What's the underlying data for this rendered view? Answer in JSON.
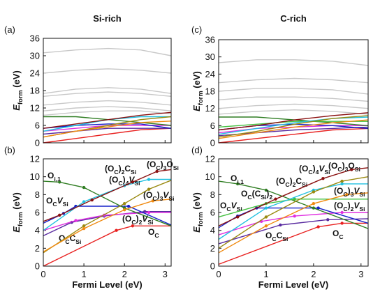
{
  "chart_data": [
    {
      "type": "line",
      "title": "Si-rich",
      "panel_label": "(a)",
      "y_label": [
        {
          "it": "E"
        },
        {
          "sub": "form"
        },
        {
          "text": " (eV)"
        }
      ],
      "xlim": [
        0,
        3.15
      ],
      "xticks": [
        0,
        1,
        2,
        3
      ],
      "xtick_labels": false,
      "ylim": [
        0,
        36
      ],
      "yticks": [
        0,
        6,
        12,
        18,
        24,
        30,
        36
      ],
      "x": [
        0,
        0.8,
        1.6,
        2.4,
        3.15
      ],
      "series": [
        {
          "color": "#c8c8c8",
          "values": [
            31,
            32,
            32.5,
            32,
            30
          ]
        },
        {
          "color": "#c8c8c8",
          "values": [
            24,
            25,
            25.5,
            25,
            24
          ]
        },
        {
          "color": "#c8c8c8",
          "values": [
            17,
            18.5,
            19,
            18.5,
            17
          ]
        },
        {
          "color": "#c8c8c8",
          "values": [
            16,
            17,
            17.5,
            17,
            16
          ]
        },
        {
          "color": "#c8c8c8",
          "values": [
            13,
            14,
            14.5,
            14,
            13
          ]
        },
        {
          "color": "#c8c8c8",
          "values": [
            11,
            12,
            12.5,
            12,
            11
          ]
        },
        {
          "color": "#c8c8c8",
          "values": [
            9.5,
            10.5,
            11,
            11,
            10
          ]
        },
        {
          "color": "#e8201f",
          "values": [
            0,
            1.5,
            3,
            4.5,
            5
          ]
        },
        {
          "color": "#5a2ca0",
          "values": [
            3,
            4,
            5,
            5,
            5
          ]
        },
        {
          "color": "#e030e0",
          "values": [
            4,
            5,
            6,
            6,
            6
          ]
        },
        {
          "color": "#1520c8",
          "values": [
            5,
            6,
            6.5,
            6.5,
            5
          ]
        },
        {
          "color": "#2f7d22",
          "values": [
            9,
            9,
            8,
            7,
            6
          ]
        },
        {
          "color": "#20c0e0",
          "values": [
            4,
            6,
            8,
            9,
            9
          ]
        },
        {
          "color": "#9a8a10",
          "values": [
            2,
            4,
            6,
            8,
            9
          ]
        },
        {
          "color": "#f08a10",
          "values": [
            2,
            4,
            5.5,
            7,
            7.5
          ]
        },
        {
          "color": "#8a1010",
          "values": [
            5,
            6.5,
            8,
            9.5,
            10.5
          ]
        }
      ]
    },
    {
      "type": "line",
      "panel_label": "(b)",
      "y_label": [
        {
          "it": "E"
        },
        {
          "sub": "form"
        },
        {
          "text": " (eV)"
        }
      ],
      "x_label": "Fermi Level (eV)",
      "xlim": [
        0,
        3.15
      ],
      "xticks": [
        0,
        1,
        2,
        3
      ],
      "xtick_labels": true,
      "ylim": [
        0,
        12
      ],
      "yticks": [
        0,
        2,
        4,
        6,
        8,
        10,
        12
      ],
      "series": [
        {
          "name": [
            {
              "text": "O"
            },
            {
              "sub": "C"
            }
          ],
          "color": "#e8201f",
          "x": [
            0,
            1.8,
            2.2,
            3.15
          ],
          "values": [
            0,
            4.0,
            4.5,
            4.5
          ]
        },
        {
          "name": [
            {
              "text": "O"
            },
            {
              "sub": "C"
            },
            {
              "text": "C"
            },
            {
              "sub": "Si"
            }
          ],
          "color": "#5a2ca0",
          "x": [
            0,
            0.7,
            1.5,
            2.5,
            3.15
          ],
          "values": [
            3.4,
            4.9,
            5.6,
            6.1,
            6.1
          ]
        },
        {
          "name": [
            {
              "text": "(O"
            },
            {
              "sub": "C"
            },
            {
              "text": ")"
            },
            {
              "sub": "2"
            },
            {
              "it": "V"
            },
            {
              "sub": "Si"
            }
          ],
          "color": "#e030e0",
          "x": [
            0,
            0.8,
            1.5,
            2.6,
            3.15
          ],
          "values": [
            4.0,
            5.1,
            5.7,
            6.0,
            6.0
          ]
        },
        {
          "name": [
            {
              "text": "O"
            },
            {
              "sub": "C"
            },
            {
              "it": "V"
            },
            {
              "sub": "Si"
            }
          ],
          "color": "#1520c8",
          "x": [
            0,
            0.5,
            0.8,
            2.1,
            3.15
          ],
          "values": [
            4.8,
            5.9,
            6.7,
            6.7,
            4.6
          ]
        },
        {
          "name": [
            {
              "text": "O"
            },
            {
              "sub": "i,1"
            }
          ],
          "color": "#2f7d22",
          "x": [
            0,
            0.4,
            1.0,
            2.0,
            3.15
          ],
          "values": [
            9.5,
            9.4,
            8.8,
            6.5,
            4.5
          ]
        },
        {
          "name": [
            {
              "text": "(O"
            },
            {
              "sub": "C"
            },
            {
              "text": ")"
            },
            {
              "sub": "2"
            },
            {
              "text": "C"
            },
            {
              "sub": "Si"
            }
          ],
          "color": "#20c0e0",
          "x": [
            0,
            1.0,
            2.0,
            2.6,
            3.15
          ],
          "values": [
            4.0,
            7.2,
            9.0,
            9.7,
            9.7
          ]
        },
        {
          "name": [
            {
              "text": "(O"
            },
            {
              "sub": "C"
            },
            {
              "text": ")"
            },
            {
              "sub": "4"
            },
            {
              "it": "V"
            },
            {
              "sub": "Si"
            }
          ],
          "color": "#9a8a10",
          "x": [
            0,
            1.0,
            2.0,
            2.6,
            3.15
          ],
          "values": [
            1.5,
            4.5,
            7.0,
            8.6,
            9.6
          ]
        },
        {
          "name": [
            {
              "text": "(O"
            },
            {
              "sub": "C"
            },
            {
              "text": ")"
            },
            {
              "sub": "3"
            },
            {
              "it": "V"
            },
            {
              "sub": "Si"
            }
          ],
          "color": "#f08a10",
          "x": [
            0,
            1.0,
            2.0,
            2.7,
            3.15
          ],
          "values": [
            1.6,
            4.2,
            6.3,
            7.3,
            7.5
          ]
        },
        {
          "name": [
            {
              "text": "(O"
            },
            {
              "sub": "C"
            },
            {
              "text": ")"
            },
            {
              "sub": "3"
            },
            {
              "text": "O"
            },
            {
              "sub": "Si"
            }
          ],
          "color": "#8a1010",
          "x": [
            0,
            0.4,
            1.2,
            2.2,
            2.8,
            3.15
          ],
          "values": [
            5.0,
            5.7,
            7.4,
            9.4,
            10.6,
            10.8
          ]
        }
      ]
    },
    {
      "type": "line",
      "title": "C-rich",
      "panel_label": "(c)",
      "y_label": [
        {
          "it": "E"
        },
        {
          "sub": "form"
        },
        {
          "text": " (eV)"
        }
      ],
      "xlim": [
        0,
        3.15
      ],
      "xticks": [
        0,
        1,
        2,
        3
      ],
      "xtick_labels": false,
      "ylim": [
        0,
        36
      ],
      "yticks": [
        0,
        6,
        12,
        18,
        24,
        30,
        36
      ],
      "x": [
        0,
        0.8,
        1.6,
        2.4,
        3.15
      ],
      "series": [
        {
          "color": "#c8c8c8",
          "values": [
            28,
            29,
            29,
            28.5,
            27
          ]
        },
        {
          "color": "#c8c8c8",
          "values": [
            21,
            22,
            22.5,
            22,
            21
          ]
        },
        {
          "color": "#c8c8c8",
          "values": [
            18,
            19,
            19,
            18.5,
            17
          ]
        },
        {
          "color": "#c8c8c8",
          "values": [
            15,
            16,
            16,
            15.5,
            14.5
          ]
        },
        {
          "color": "#c8c8c8",
          "values": [
            12,
            13,
            13.5,
            13,
            12
          ]
        },
        {
          "color": "#c8c8c8",
          "values": [
            10,
            11,
            11.5,
            11,
            10
          ]
        },
        {
          "color": "#e8201f",
          "values": [
            0,
            1.5,
            3,
            4.5,
            5
          ]
        },
        {
          "color": "#5a2ca0",
          "values": [
            2.5,
            3.5,
            4.5,
            5,
            5.5
          ]
        },
        {
          "color": "#e030e0",
          "values": [
            3.5,
            5,
            5.5,
            6,
            6
          ]
        },
        {
          "color": "#1520c8",
          "values": [
            4.5,
            6,
            6.5,
            6,
            5
          ]
        },
        {
          "color": "#2f7d22",
          "values": [
            9,
            9,
            8,
            7,
            6
          ]
        },
        {
          "color": "#44c040",
          "values": [
            5.5,
            6.5,
            7.5,
            7.5,
            7.5
          ]
        },
        {
          "color": "#20c0e0",
          "values": [
            3,
            5,
            7,
            8.5,
            9
          ]
        },
        {
          "color": "#9a8a10",
          "values": [
            2,
            4,
            6.5,
            8.5,
            9.5
          ]
        },
        {
          "color": "#f08a10",
          "values": [
            1.5,
            3.5,
            5.5,
            7,
            8
          ]
        },
        {
          "color": "#8a1010",
          "values": [
            4.5,
            6,
            8,
            9.5,
            10.5
          ]
        }
      ]
    },
    {
      "type": "line",
      "panel_label": "(d)",
      "y_label": [
        {
          "it": "E"
        },
        {
          "sub": "form"
        },
        {
          "text": " (eV)"
        }
      ],
      "x_label": "Fermi Level (eV)",
      "xlim": [
        0,
        3.15
      ],
      "xticks": [
        0,
        1,
        2,
        3
      ],
      "xtick_labels": true,
      "ylim": [
        0,
        12
      ],
      "yticks": [
        0,
        2,
        4,
        6,
        8,
        10,
        12
      ],
      "series": [
        {
          "name": [
            {
              "text": "O"
            },
            {
              "sub": "C"
            }
          ],
          "color": "#e8201f",
          "x": [
            0,
            2.1,
            2.6,
            3.15
          ],
          "values": [
            0.2,
            4.4,
            4.8,
            4.8
          ]
        },
        {
          "name": [
            {
              "text": "O"
            },
            {
              "sub": "C"
            },
            {
              "text": "C"
            },
            {
              "sub": "Si"
            }
          ],
          "color": "#5a2ca0",
          "x": [
            0,
            1.3,
            2.3,
            3.15
          ],
          "values": [
            2.5,
            4.6,
            5.2,
            5.3
          ]
        },
        {
          "name": [
            {
              "text": "(O"
            },
            {
              "sub": "C"
            },
            {
              "text": ")"
            },
            {
              "sub": "2"
            },
            {
              "it": "V"
            },
            {
              "sub": "Si"
            }
          ],
          "color": "#e030e0",
          "x": [
            0,
            0.9,
            1.6,
            2.6,
            3.15
          ],
          "values": [
            3.5,
            5.0,
            5.6,
            6.0,
            6.0
          ]
        },
        {
          "name": [
            {
              "text": "O"
            },
            {
              "sub": "C"
            },
            {
              "it": "V"
            },
            {
              "sub": "Si"
            }
          ],
          "color": "#1520c8",
          "x": [
            0,
            0.4,
            0.8,
            2.1,
            3.15
          ],
          "values": [
            4.3,
            5.6,
            6.5,
            6.5,
            4.8
          ]
        },
        {
          "name": [
            {
              "text": "O"
            },
            {
              "sub": "i,1"
            }
          ],
          "color": "#2f7d22",
          "x": [
            0,
            0.4,
            1.0,
            2.0,
            3.15
          ],
          "values": [
            9.5,
            9.2,
            8.5,
            6.5,
            4.2
          ]
        },
        {
          "name": [
            {
              "text": "O"
            },
            {
              "sub": "C"
            },
            {
              "text": "(C"
            },
            {
              "sub": "Si"
            },
            {
              "text": ")"
            },
            {
              "sub": "2"
            }
          ],
          "color": "#44c040",
          "x": [
            0,
            1.0,
            1.6,
            3.15
          ],
          "values": [
            5.5,
            7.0,
            7.5,
            7.5
          ]
        },
        {
          "name": [
            {
              "text": "(O"
            },
            {
              "sub": "C"
            },
            {
              "text": ")"
            },
            {
              "sub": "2"
            },
            {
              "text": "C"
            },
            {
              "sub": "Si"
            }
          ],
          "color": "#20c0e0",
          "x": [
            0,
            1.0,
            2.0,
            2.6,
            3.15
          ],
          "values": [
            3.0,
            6.5,
            8.5,
            9.2,
            9.2
          ]
        },
        {
          "name": [
            {
              "text": "(O"
            },
            {
              "sub": "C"
            },
            {
              "text": ")"
            },
            {
              "sub": "4"
            },
            {
              "it": "V"
            },
            {
              "sub": "Si"
            }
          ],
          "color": "#9a8a10",
          "x": [
            0,
            1.0,
            2.0,
            2.6,
            3.15
          ],
          "values": [
            2.0,
            5.5,
            8.3,
            9.5,
            10.0
          ]
        },
        {
          "name": [
            {
              "text": "(O"
            },
            {
              "sub": "C"
            },
            {
              "text": ")"
            },
            {
              "sub": "3"
            },
            {
              "it": "V"
            },
            {
              "sub": "Si"
            }
          ],
          "color": "#f08a10",
          "x": [
            0,
            1.0,
            2.0,
            2.7,
            3.15
          ],
          "values": [
            1.5,
            4.5,
            7.0,
            8.0,
            8.2
          ]
        },
        {
          "name": [
            {
              "text": "(O"
            },
            {
              "sub": "C"
            },
            {
              "text": ")"
            },
            {
              "sub": "3"
            },
            {
              "text": "O"
            },
            {
              "sub": "Si"
            }
          ],
          "color": "#8a1010",
          "x": [
            0,
            0.4,
            1.2,
            2.2,
            2.8,
            3.15
          ],
          "values": [
            4.5,
            5.5,
            7.5,
            9.8,
            10.8,
            11.0
          ]
        }
      ]
    }
  ]
}
